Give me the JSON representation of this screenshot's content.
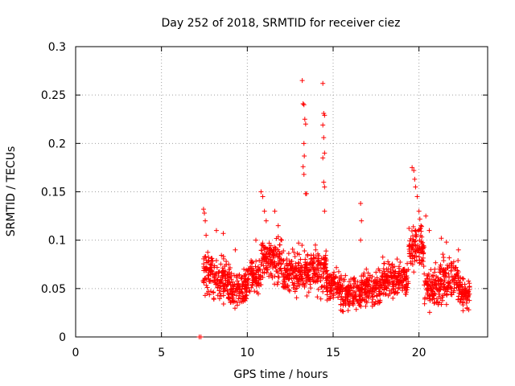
{
  "chart_data": {
    "type": "scatter",
    "title": "Day 252 of 2018, SRMTID for receiver ciez",
    "xlabel": "GPS time / hours",
    "ylabel": "SRMTID / TECUs",
    "xlim": [
      0,
      24
    ],
    "ylim": [
      0,
      0.3
    ],
    "x_ticks": [
      0,
      5,
      10,
      15,
      20
    ],
    "x_tick_labels": [
      "0",
      "5",
      "10",
      "15",
      "20"
    ],
    "y_ticks": [
      0,
      0.05,
      0.1,
      0.15,
      0.2,
      0.25,
      0.3
    ],
    "y_tick_labels": [
      "0",
      "0.05",
      "0.1",
      "0.15",
      "0.2",
      "0.25",
      "0.3"
    ],
    "grid": true,
    "marker": "+",
    "series": [
      {
        "name": "SRMTID",
        "color": "#ff0000",
        "anchors": [
          [
            7.2,
            0.0
          ],
          [
            7.3,
            0.0
          ],
          [
            7.45,
            0.132
          ],
          [
            7.5,
            0.128
          ],
          [
            7.55,
            0.12
          ],
          [
            7.6,
            0.105
          ],
          [
            8.2,
            0.11
          ],
          [
            8.6,
            0.107
          ],
          [
            9.3,
            0.09
          ],
          [
            9.8,
            0.07
          ],
          [
            10.5,
            0.1
          ],
          [
            10.8,
            0.15
          ],
          [
            10.9,
            0.145
          ],
          [
            11.0,
            0.13
          ],
          [
            11.1,
            0.12
          ],
          [
            11.6,
            0.13
          ],
          [
            11.8,
            0.115
          ],
          [
            12.0,
            0.1
          ],
          [
            13.2,
            0.265
          ],
          [
            13.25,
            0.241
          ],
          [
            13.3,
            0.24
          ],
          [
            13.35,
            0.225
          ],
          [
            13.4,
            0.22
          ],
          [
            13.3,
            0.2
          ],
          [
            13.32,
            0.187
          ],
          [
            13.25,
            0.176
          ],
          [
            13.3,
            0.168
          ],
          [
            13.4,
            0.148
          ],
          [
            13.45,
            0.148
          ],
          [
            14.4,
            0.262
          ],
          [
            14.45,
            0.231
          ],
          [
            14.5,
            0.229
          ],
          [
            14.4,
            0.219
          ],
          [
            14.45,
            0.206
          ],
          [
            14.5,
            0.19
          ],
          [
            14.4,
            0.185
          ],
          [
            14.45,
            0.16
          ],
          [
            14.5,
            0.155
          ],
          [
            14.5,
            0.13
          ],
          [
            16.6,
            0.138
          ],
          [
            16.65,
            0.12
          ],
          [
            16.6,
            0.1
          ],
          [
            19.6,
            0.175
          ],
          [
            19.7,
            0.172
          ],
          [
            19.75,
            0.163
          ],
          [
            19.8,
            0.155
          ],
          [
            19.9,
            0.145
          ],
          [
            20.0,
            0.13
          ],
          [
            20.4,
            0.125
          ],
          [
            20.6,
            0.11
          ],
          [
            21.3,
            0.102
          ],
          [
            21.6,
            0.098
          ],
          [
            22.3,
            0.09
          ],
          [
            22.8,
            0.03
          ],
          [
            22.9,
            0.028
          ]
        ],
        "segments": [
          [
            7.4,
            8.0,
            0.035,
            0.1
          ],
          [
            8.0,
            9.0,
            0.03,
            0.09
          ],
          [
            9.0,
            10.0,
            0.025,
            0.075
          ],
          [
            10.0,
            10.8,
            0.035,
            0.09
          ],
          [
            10.8,
            12.0,
            0.05,
            0.11
          ],
          [
            12.0,
            13.2,
            0.035,
            0.1
          ],
          [
            13.2,
            14.6,
            0.035,
            0.1
          ],
          [
            14.6,
            15.4,
            0.03,
            0.075
          ],
          [
            15.4,
            16.6,
            0.02,
            0.07
          ],
          [
            16.6,
            17.8,
            0.025,
            0.075
          ],
          [
            17.8,
            19.4,
            0.035,
            0.085
          ],
          [
            19.4,
            20.3,
            0.06,
            0.13
          ],
          [
            20.3,
            21.2,
            0.02,
            0.08
          ],
          [
            21.2,
            22.3,
            0.025,
            0.09
          ],
          [
            22.3,
            22.95,
            0.025,
            0.065
          ]
        ]
      }
    ]
  }
}
